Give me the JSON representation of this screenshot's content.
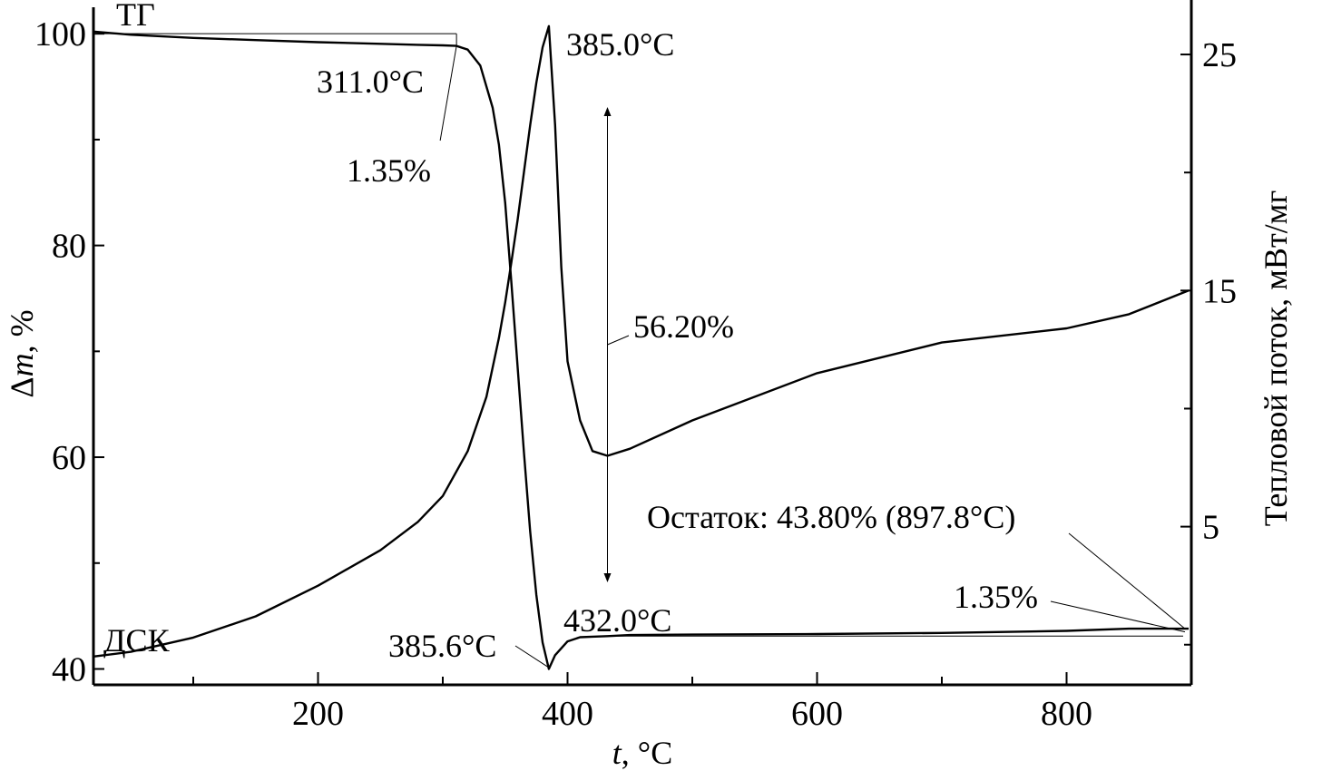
{
  "chart_data": {
    "type": "line",
    "x_axis": {
      "label_var": "t",
      "label_unit": ", °C",
      "range": [
        20,
        900
      ],
      "ticks": [
        200,
        400,
        600,
        800
      ]
    },
    "y_left": {
      "label_symbol": "Δ",
      "label_var": "m",
      "label_unit": ", %",
      "range": [
        38.5,
        102.5
      ],
      "ticks": [
        40,
        60,
        80,
        100
      ]
    },
    "y_right": {
      "label": "Тепловой поток, мВт/мг",
      "range": [
        -1.7,
        27
      ],
      "ticks": [
        5,
        15,
        25
      ]
    },
    "series": [
      {
        "name": "ТГ",
        "axis": "left",
        "x": [
          20,
          50,
          100,
          150,
          200,
          250,
          280,
          300,
          311,
          320,
          330,
          340,
          345,
          350,
          355,
          360,
          365,
          370,
          375,
          380,
          385,
          390,
          400,
          410,
          420,
          432,
          450,
          500,
          600,
          700,
          800,
          850,
          897.8
        ],
        "y": [
          100.2,
          99.9,
          99.6,
          99.4,
          99.2,
          99.05,
          98.95,
          98.9,
          98.85,
          98.5,
          97.0,
          93.0,
          89.5,
          84.0,
          76.5,
          68.5,
          60.5,
          53.0,
          47.0,
          42.5,
          40.0,
          41.3,
          42.6,
          43.0,
          43.05,
          43.1,
          43.2,
          43.25,
          43.3,
          43.4,
          43.6,
          43.8,
          43.8
        ]
      },
      {
        "name": "ДСК",
        "axis": "right",
        "x": [
          20,
          50,
          100,
          150,
          200,
          250,
          280,
          300,
          320,
          335,
          345,
          350,
          355,
          360,
          365,
          370,
          375,
          380,
          385,
          390,
          395,
          400,
          410,
          420,
          432,
          450,
          500,
          600,
          700,
          800,
          850,
          897.8
        ],
        "y": [
          -0.5,
          -0.3,
          0.3,
          1.2,
          2.5,
          4.0,
          5.2,
          6.3,
          8.2,
          10.5,
          13.0,
          14.5,
          16.2,
          18.0,
          20.0,
          22.0,
          23.8,
          25.3,
          26.2,
          22.0,
          16.0,
          12.0,
          9.5,
          8.2,
          8.0,
          8.3,
          9.5,
          11.5,
          12.8,
          13.4,
          14.0,
          15.0
        ]
      }
    ],
    "annotations": {
      "tg_label": "ТГ",
      "dsc_label": "ДСК",
      "onset_temp": "311.0°C",
      "onset_loss": "1.35%",
      "peak_temp": "385.0°C",
      "mass_loss": "56.20%",
      "end_temp": "432.0°C",
      "tg_min_temp": "385.6°C",
      "final_loss": "1.35%",
      "residue": "Остаток: 43.80% (897.8°C)"
    }
  }
}
